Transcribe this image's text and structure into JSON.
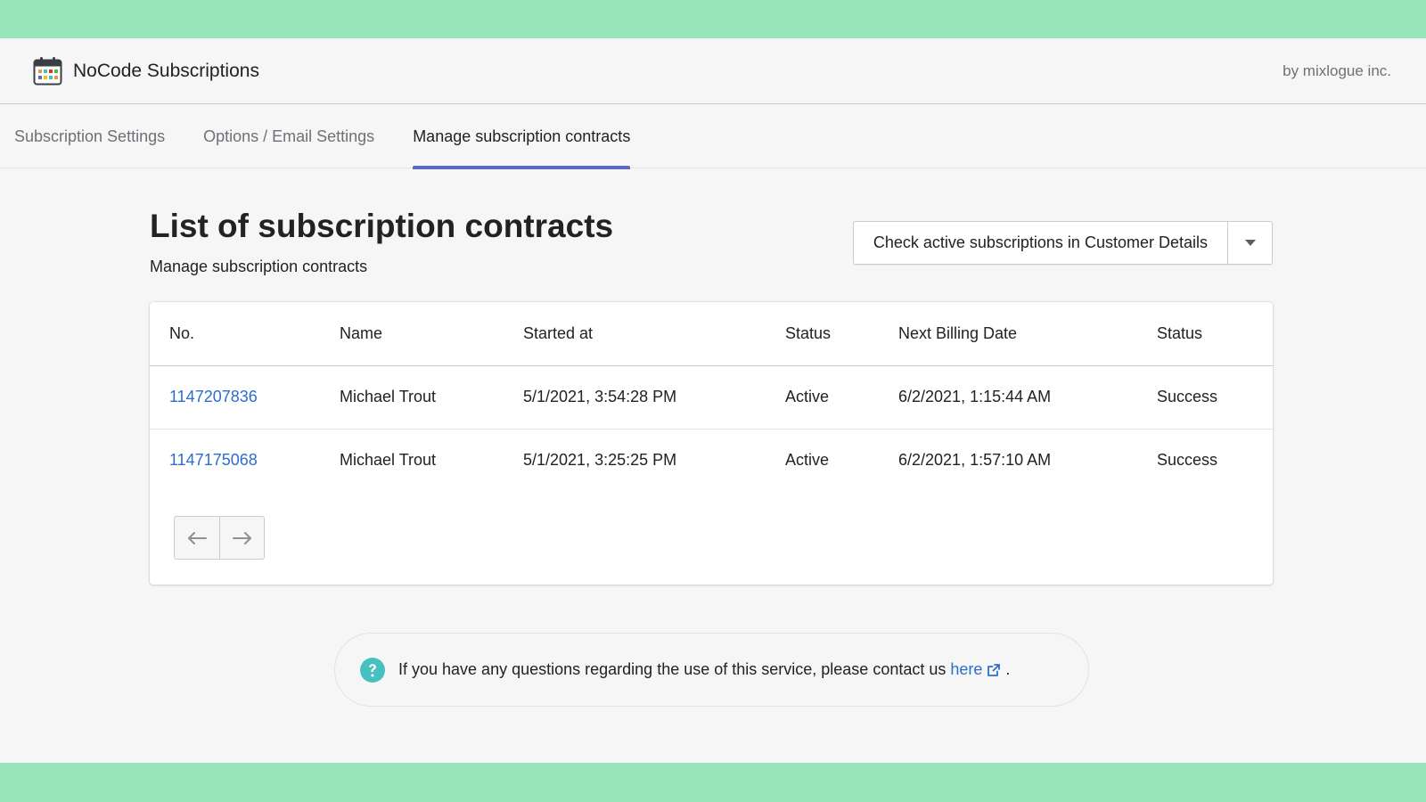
{
  "app": {
    "title": "NoCode Subscriptions",
    "vendor": "by mixlogue inc."
  },
  "tabs": [
    {
      "label": "Subscription Settings",
      "active": false
    },
    {
      "label": "Options / Email Settings",
      "active": false
    },
    {
      "label": "Manage subscription contracts",
      "active": true
    }
  ],
  "page": {
    "title": "List of subscription contracts",
    "subtitle": "Manage subscription contracts",
    "action_button": "Check active subscriptions in Customer Details"
  },
  "table": {
    "headers": [
      "No.",
      "Name",
      "Started at",
      "Status",
      "Next Billing Date",
      "Status"
    ],
    "rows": [
      {
        "no": "1147207836",
        "name": "Michael Trout",
        "started_at": "5/1/2021, 3:54:28 PM",
        "status": "Active",
        "next_billing": "6/2/2021, 1:15:44 AM",
        "billing_status": "Success"
      },
      {
        "no": "1147175068",
        "name": "Michael Trout",
        "started_at": "5/1/2021, 3:25:25 PM",
        "status": "Active",
        "next_billing": "6/2/2021, 1:57:10 AM",
        "billing_status": "Success"
      }
    ]
  },
  "notice": {
    "text": "If you have any questions regarding the use of this service, please contact us",
    "link_label": "here",
    "suffix": "."
  },
  "icons": {
    "app": "calendar-icon",
    "caret": "caret-down-icon",
    "prev": "arrow-left-icon",
    "next": "arrow-right-icon",
    "help": "question-circle-icon",
    "external": "external-link-icon"
  },
  "colors": {
    "outer_background": "#98e4bb",
    "accent_tab": "#5c6ac4",
    "link": "#2c6ecb",
    "help_icon": "#47c1bf"
  }
}
